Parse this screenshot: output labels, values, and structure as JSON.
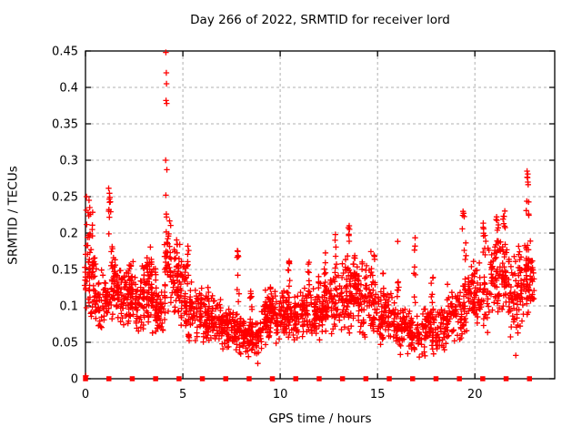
{
  "window": {
    "background": "#ffffff"
  },
  "colors": {
    "marker": "#ff0000",
    "grid": "#b0b0b0",
    "axis": "#000000",
    "text": "#000000"
  },
  "chart_data": {
    "type": "scatter",
    "title": "Day 266 of 2022, SRMTID for receiver lord",
    "xlabel": "GPS time / hours",
    "ylabel": "SRMTID / TECUs",
    "xlim": [
      0,
      24.1
    ],
    "ylim": [
      0,
      0.45
    ],
    "xticks": [
      0,
      5,
      10,
      15,
      20
    ],
    "yticks": [
      0,
      0.05,
      0.1,
      0.15,
      0.2,
      0.25,
      0.3,
      0.35,
      0.4,
      0.45
    ],
    "grid": true,
    "legend_position": "none",
    "marker": {
      "symbol": "plus",
      "color": "#ff0000",
      "size": 7
    },
    "baseline_marker": {
      "symbol": "filled-square",
      "color": "#ff0000",
      "size": 5.5
    },
    "baseline_y": 0,
    "baseline_x": [
      0,
      1.2,
      2.4,
      3.6,
      4.8,
      6,
      7.2,
      8.4,
      9.6,
      10.8,
      12,
      13.2,
      14.4,
      15.6,
      16.8,
      18,
      19.2,
      20.4,
      21.6,
      22.8
    ],
    "scatter_model": {
      "seed": 266,
      "comment_bands": "each band = [x_start_h, x_end_h, y_low_TECU, y_high_TECU, n_points]",
      "bands": [
        [
          0.0,
          0.5,
          0.08,
          0.21,
          55
        ],
        [
          0.05,
          0.35,
          0.16,
          0.24,
          14
        ],
        [
          0.5,
          1.2,
          0.06,
          0.165,
          65
        ],
        [
          1.2,
          1.65,
          0.08,
          0.185,
          45
        ],
        [
          1.65,
          2.6,
          0.065,
          0.165,
          100
        ],
        [
          2.6,
          3.6,
          0.06,
          0.175,
          100
        ],
        [
          3.0,
          3.35,
          0.12,
          0.195,
          18
        ],
        [
          3.6,
          4.05,
          0.055,
          0.125,
          45
        ],
        [
          4.05,
          4.35,
          0.08,
          0.225,
          35
        ],
        [
          4.35,
          5.15,
          0.07,
          0.195,
          75
        ],
        [
          5.15,
          6.1,
          0.05,
          0.14,
          85
        ],
        [
          6.1,
          7.1,
          0.04,
          0.115,
          95
        ],
        [
          7.1,
          7.95,
          0.035,
          0.1,
          85
        ],
        [
          7.95,
          9.0,
          0.03,
          0.09,
          95
        ],
        [
          9.0,
          10.0,
          0.045,
          0.125,
          95
        ],
        [
          10.0,
          11.0,
          0.05,
          0.125,
          95
        ],
        [
          11.0,
          12.0,
          0.05,
          0.13,
          95
        ],
        [
          12.0,
          13.0,
          0.055,
          0.145,
          95
        ],
        [
          13.0,
          14.0,
          0.06,
          0.165,
          95
        ],
        [
          14.0,
          15.0,
          0.05,
          0.17,
          85
        ],
        [
          15.0,
          16.0,
          0.04,
          0.125,
          85
        ],
        [
          16.0,
          16.6,
          0.03,
          0.105,
          55
        ],
        [
          16.6,
          17.1,
          0.025,
          0.095,
          45
        ],
        [
          17.1,
          18.6,
          0.03,
          0.105,
          120
        ],
        [
          18.6,
          19.7,
          0.05,
          0.135,
          85
        ],
        [
          19.7,
          20.7,
          0.06,
          0.165,
          85
        ],
        [
          20.7,
          21.6,
          0.08,
          0.2,
          85
        ],
        [
          21.6,
          22.4,
          0.05,
          0.185,
          75
        ],
        [
          22.4,
          23.0,
          0.07,
          0.2,
          70
        ]
      ],
      "comment_streaks": "vertical satellite-pass streaks = [center_h, half_width_h, y_low, y_high, n]",
      "streaks": [
        [
          1.25,
          0.06,
          0.19,
          0.27,
          11
        ],
        [
          2.3,
          0.05,
          0.1,
          0.16,
          10
        ],
        [
          4.75,
          0.08,
          0.12,
          0.195,
          12
        ],
        [
          5.25,
          0.05,
          0.13,
          0.185,
          8
        ],
        [
          6.3,
          0.05,
          0.09,
          0.13,
          8
        ],
        [
          7.85,
          0.07,
          0.1,
          0.185,
          9
        ],
        [
          8.5,
          0.05,
          0.08,
          0.12,
          8
        ],
        [
          9.5,
          0.06,
          0.08,
          0.135,
          10
        ],
        [
          10.45,
          0.05,
          0.12,
          0.17,
          8
        ],
        [
          11.45,
          0.05,
          0.11,
          0.16,
          8
        ],
        [
          12.3,
          0.05,
          0.12,
          0.175,
          8
        ],
        [
          12.85,
          0.05,
          0.13,
          0.2,
          9
        ],
        [
          13.5,
          0.06,
          0.13,
          0.21,
          10
        ],
        [
          13.85,
          0.05,
          0.12,
          0.19,
          8
        ],
        [
          14.75,
          0.1,
          0.1,
          0.205,
          12
        ],
        [
          15.3,
          0.05,
          0.09,
          0.15,
          8
        ],
        [
          16.05,
          0.05,
          0.1,
          0.19,
          7
        ],
        [
          16.9,
          0.06,
          0.1,
          0.215,
          8
        ],
        [
          17.8,
          0.06,
          0.08,
          0.14,
          8
        ],
        [
          19.45,
          0.1,
          0.12,
          0.24,
          12
        ],
        [
          20.5,
          0.08,
          0.14,
          0.23,
          10
        ],
        [
          21.15,
          0.07,
          0.15,
          0.225,
          9
        ],
        [
          21.5,
          0.06,
          0.16,
          0.25,
          9
        ],
        [
          22.7,
          0.08,
          0.15,
          0.285,
          12
        ]
      ],
      "comment_outliers": "explicit notable points = [hour, TECU]",
      "outliers": [
        [
          0.02,
          0.004
        ],
        [
          0.05,
          0.25
        ],
        [
          0.18,
          0.245
        ],
        [
          0.22,
          0.235
        ],
        [
          4.13,
          0.448
        ],
        [
          4.15,
          0.42
        ],
        [
          4.16,
          0.405
        ],
        [
          4.14,
          0.382
        ],
        [
          4.17,
          0.378
        ],
        [
          4.12,
          0.3
        ],
        [
          4.18,
          0.287
        ],
        [
          4.13,
          0.252
        ],
        [
          4.15,
          0.226
        ],
        [
          4.16,
          0.222
        ],
        [
          8.85,
          0.021
        ],
        [
          22.1,
          0.032
        ],
        [
          22.68,
          0.285
        ],
        [
          22.72,
          0.27
        ]
      ]
    }
  }
}
